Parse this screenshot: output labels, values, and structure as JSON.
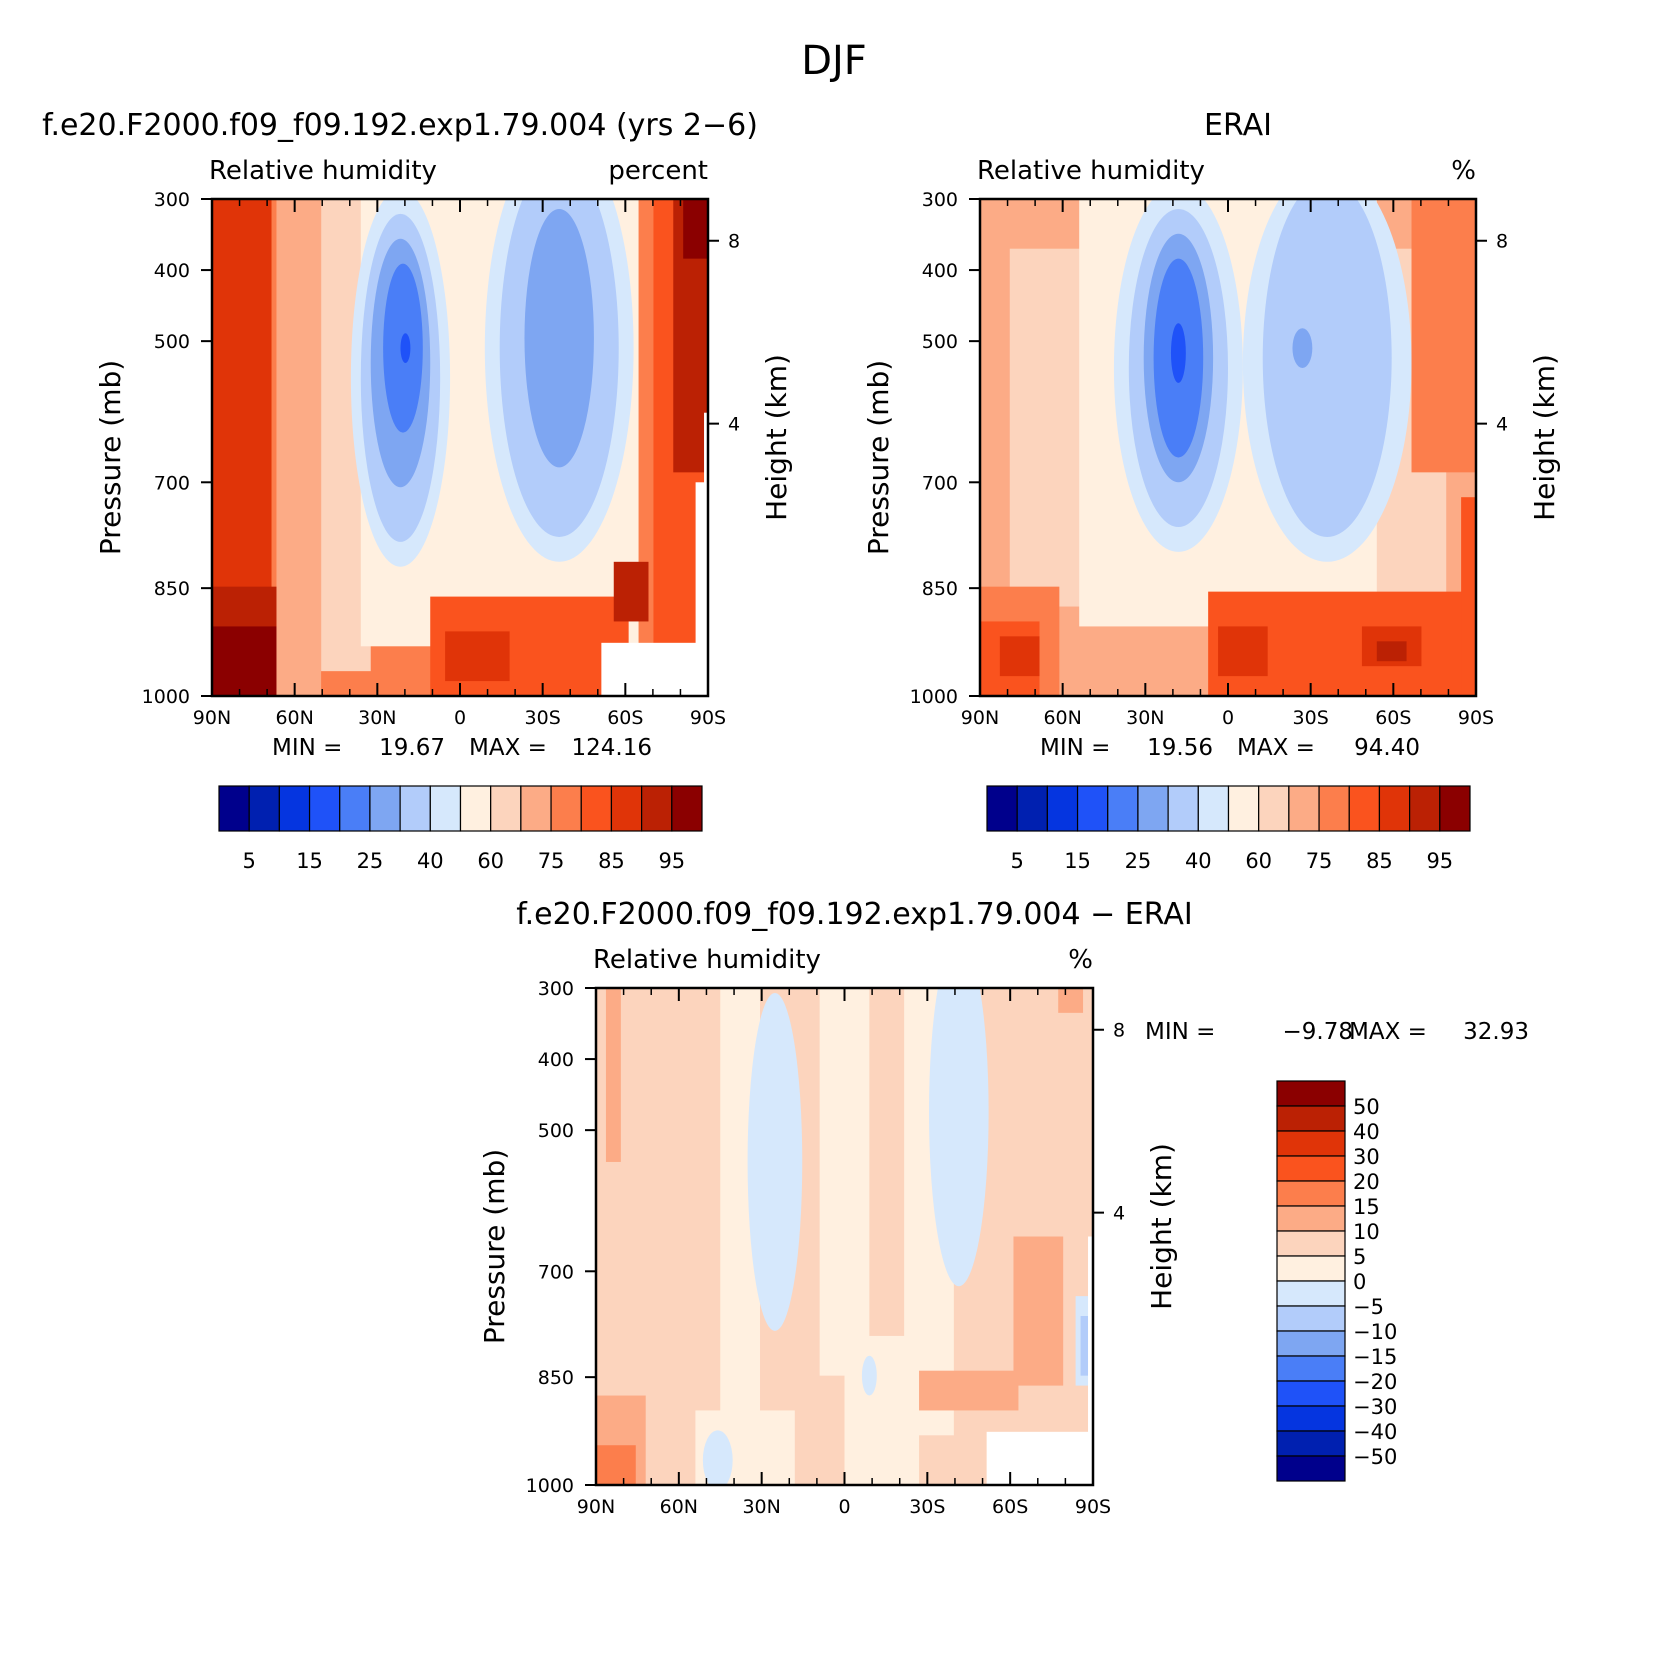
{
  "figure_title": "DJF",
  "colors": {
    "rh_scale": [
      "#00008c",
      "#0020b0",
      "#0535e0",
      "#1f52f8",
      "#4a7ef7",
      "#7ea6f2",
      "#b2ccfa",
      "#d6e8fc",
      "#fff0e0",
      "#fcd4bd",
      "#fcab86",
      "#fc7e4c",
      "#fa531e",
      "#e03408",
      "#bb2104",
      "#8b0000"
    ],
    "diff_scale": [
      "#00008c",
      "#0020b0",
      "#0535e0",
      "#1f52f8",
      "#4a7ef7",
      "#7ea6f2",
      "#b2ccfa",
      "#d6e8fc",
      "#fff0e0",
      "#fcd4bd",
      "#fcab86",
      "#fc7e4c",
      "#fa531e",
      "#e03408",
      "#bb2104",
      "#8b0000"
    ]
  },
  "chart_data": [
    {
      "type": "heatmap",
      "title": "f.e20.F2000.f09_f09.192.exp1.79.004 (yrs 2−6)",
      "left_label": "Relative humidity",
      "right_label": "percent",
      "xlabel": "",
      "ylabel": "Pressure (mb)",
      "y2label": "Height (km)",
      "x_ticks": [
        "90N",
        "60N",
        "30N",
        "0",
        "30S",
        "60S",
        "90S"
      ],
      "y_ticks": [
        "300",
        "400",
        "500",
        "700",
        "850",
        "1000"
      ],
      "y2_ticks": [
        "8",
        "4"
      ],
      "min_label": "MIN =",
      "min_value": "19.67",
      "max_label": "MAX =",
      "max_value": "124.16",
      "colorbar_ticks": [
        "5",
        "15",
        "25",
        "40",
        "60",
        "75",
        "85",
        "95"
      ]
    },
    {
      "type": "heatmap",
      "title": "ERAI",
      "left_label": "Relative humidity",
      "right_label": "%",
      "xlabel": "",
      "ylabel": "Pressure (mb)",
      "y2label": "Height (km)",
      "x_ticks": [
        "90N",
        "60N",
        "30N",
        "0",
        "30S",
        "60S",
        "90S"
      ],
      "y_ticks": [
        "300",
        "400",
        "500",
        "700",
        "850",
        "1000"
      ],
      "y2_ticks": [
        "8",
        "4"
      ],
      "min_label": "MIN =",
      "min_value": "19.56",
      "max_label": "MAX =",
      "max_value": "94.40",
      "colorbar_ticks": [
        "5",
        "15",
        "25",
        "40",
        "60",
        "75",
        "85",
        "95"
      ]
    },
    {
      "type": "heatmap",
      "title": "f.e20.F2000.f09_f09.192.exp1.79.004 − ERAI",
      "left_label": "Relative humidity",
      "right_label": "%",
      "xlabel": "",
      "ylabel": "Pressure (mb)",
      "y2label": "Height (km)",
      "x_ticks": [
        "90N",
        "60N",
        "30N",
        "0",
        "30S",
        "60S",
        "90S"
      ],
      "y_ticks": [
        "300",
        "400",
        "500",
        "700",
        "850",
        "1000"
      ],
      "y2_ticks": [
        "8",
        "4"
      ],
      "min_label": "MIN =",
      "min_value": "−9.78",
      "max_label": "MAX =",
      "max_value": "32.93",
      "colorbar_ticks": [
        "50",
        "40",
        "30",
        "20",
        "15",
        "10",
        "5",
        "0",
        "−5",
        "−10",
        "−15",
        "−20",
        "−30",
        "−40",
        "−50"
      ]
    }
  ]
}
